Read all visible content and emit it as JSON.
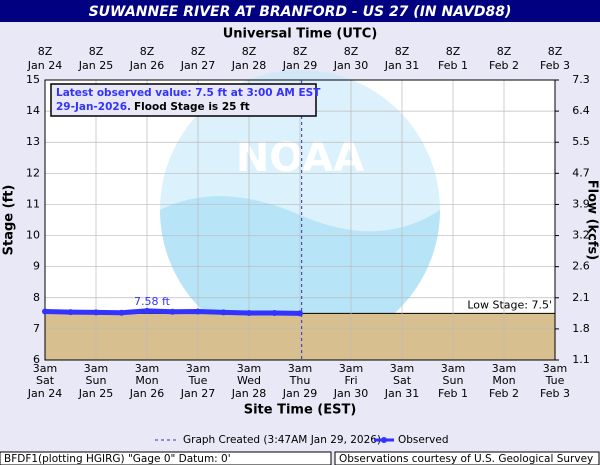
{
  "title": "SUWANNEE RIVER AT BRANFORD - US 27 (IN NAVD88)",
  "chart_data": {
    "type": "line",
    "x_title_top": "Universal Time (UTC)",
    "x_title": "Site Time (EST)",
    "y_title": "Stage (ft)",
    "y2_title": "Flow (kcfs)",
    "ylim": [
      6,
      15
    ],
    "yticks": [
      6,
      7,
      8,
      9,
      10,
      11,
      12,
      13,
      14,
      15
    ],
    "y2ticks": [
      1.1,
      1.8,
      2.1,
      2.6,
      3.2,
      3.9,
      4.7,
      5.5,
      6.4,
      7.3
    ],
    "top_ticks": [
      {
        "time": "8Z",
        "date": "Jan 24"
      },
      {
        "time": "8Z",
        "date": "Jan 25"
      },
      {
        "time": "8Z",
        "date": "Jan 26"
      },
      {
        "time": "8Z",
        "date": "Jan 27"
      },
      {
        "time": "8Z",
        "date": "Jan 28"
      },
      {
        "time": "8Z",
        "date": "Jan 29"
      },
      {
        "time": "8Z",
        "date": "Jan 30"
      },
      {
        "time": "8Z",
        "date": "Jan 31"
      },
      {
        "time": "8Z",
        "date": "Feb  1"
      },
      {
        "time": "8Z",
        "date": "Feb  2"
      },
      {
        "time": "8Z",
        "date": "Feb  3"
      }
    ],
    "bottom_ticks": [
      {
        "time": "3am",
        "day": "Sat",
        "date": "Jan 24"
      },
      {
        "time": "3am",
        "day": "Sun",
        "date": "Jan 25"
      },
      {
        "time": "3am",
        "day": "Mon",
        "date": "Jan 26"
      },
      {
        "time": "3am",
        "day": "Tue",
        "date": "Jan 27"
      },
      {
        "time": "3am",
        "day": "Wed",
        "date": "Jan 28"
      },
      {
        "time": "3am",
        "day": "Thu",
        "date": "Jan 29"
      },
      {
        "time": "3am",
        "day": "Fri",
        "date": "Jan 30"
      },
      {
        "time": "3am",
        "day": "Sat",
        "date": "Jan 31"
      },
      {
        "time": "3am",
        "day": "Sun",
        "date": "Feb 1"
      },
      {
        "time": "3am",
        "day": "Mon",
        "date": "Feb 2"
      },
      {
        "time": "3am",
        "day": "Tue",
        "date": "Feb 3"
      }
    ],
    "series": [
      {
        "name": "Observed",
        "color": "#3333ff",
        "x": [
          "Jan 24 03:00",
          "Jan 24 15:00",
          "Jan 25 03:00",
          "Jan 25 15:00",
          "Jan 26 03:00",
          "Jan 26 15:00",
          "Jan 27 03:00",
          "Jan 27 15:00",
          "Jan 28 03:00",
          "Jan 28 15:00",
          "Jan 29 03:00"
        ],
        "values": [
          7.56,
          7.54,
          7.53,
          7.52,
          7.58,
          7.55,
          7.56,
          7.53,
          7.51,
          7.51,
          7.5
        ]
      }
    ],
    "peak_label": "7.58 ft",
    "low_stage": 7.5,
    "low_stage_label": "Low Stage: 7.5'",
    "created_label": "Graph Created (3:47AM Jan 29, 2026)",
    "created_x": "Jan 29 03:47",
    "info": {
      "line1": "Latest observed value: 7.5 ft at 3:00 AM EST",
      "date": "29-Jan-2026.",
      "flood": "Flood Stage is 25 ft"
    },
    "grid": true
  },
  "footer": {
    "left": "BFDF1(plotting HGIRG) \"Gage 0\" Datum: 0'",
    "right": "Observations courtesy of U.S. Geological Survey"
  }
}
